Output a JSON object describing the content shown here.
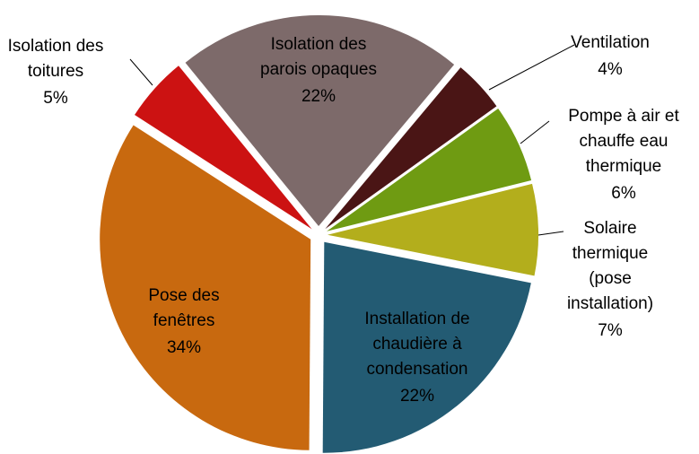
{
  "chart_data": {
    "type": "pie",
    "categories": [
      "Ventilation",
      "Pompe à air et\nchauffe eau\nthermique",
      "Solaire\nthermique\n(pose\ninstallation)",
      "Installation de\nchaudière à\ncondensation",
      "Pose des\nfenêtres",
      "Isolation des\ntoitures",
      "Isolation des\nparois opaques"
    ],
    "values": [
      4,
      6,
      7,
      22,
      34,
      5,
      22
    ],
    "value_labels": [
      "4%",
      "6%",
      "7%",
      "22%",
      "34%",
      "5%",
      "22%"
    ],
    "colors": [
      "#4a1515",
      "#6f9b12",
      "#b3ae1c",
      "#235b73",
      "#c8690f",
      "#cc1212",
      "#7d6a6a"
    ]
  }
}
